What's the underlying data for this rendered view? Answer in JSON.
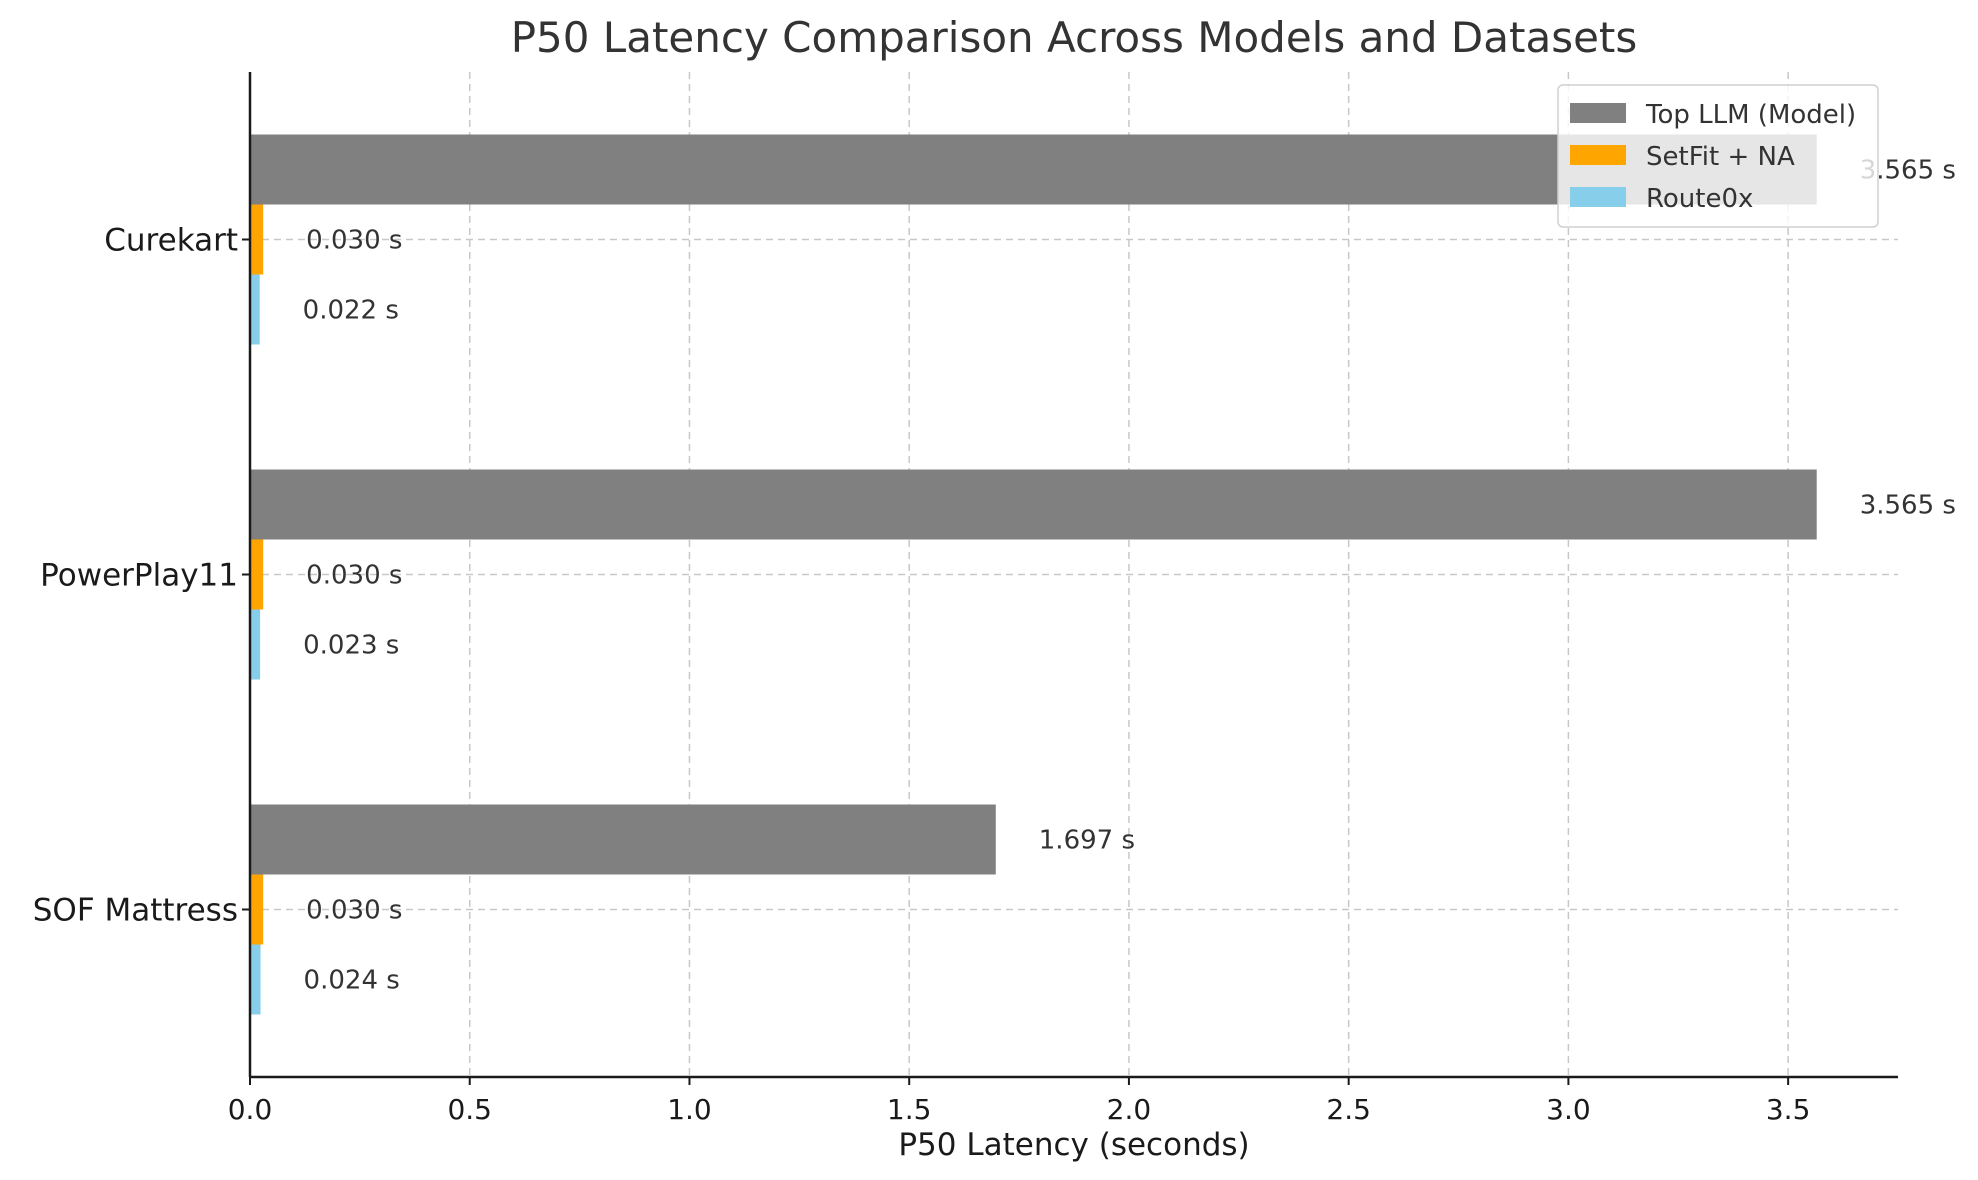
{
  "chart_data": {
    "type": "bar",
    "orientation": "horizontal",
    "title": "P50 Latency Comparison Across Models and Datasets",
    "xlabel": "P50 Latency (seconds)",
    "ylabel": "",
    "xlim": [
      0,
      3.75
    ],
    "x_ticks": [
      0.0,
      0.5,
      1.0,
      1.5,
      2.0,
      2.5,
      3.0,
      3.5
    ],
    "x_tick_labels": [
      "0.0",
      "0.5",
      "1.0",
      "1.5",
      "2.0",
      "2.5",
      "3.0",
      "3.5"
    ],
    "categories": [
      "Curekart",
      "PowerPlay11",
      "SOF Mattress"
    ],
    "grid": true,
    "legend_position": "top-right",
    "series": [
      {
        "name": "Top LLM (Model)",
        "color": "#808080",
        "values": [
          3.565,
          3.565,
          1.697
        ],
        "labels": [
          "3.565 s",
          "3.565 s",
          "1.697 s"
        ]
      },
      {
        "name": "SetFit + NA",
        "color": "#FFA500",
        "values": [
          0.03,
          0.03,
          0.03
        ],
        "labels": [
          "0.030 s",
          "0.030 s",
          "0.030 s"
        ]
      },
      {
        "name": "Route0x",
        "color": "#87CEEB",
        "values": [
          0.022,
          0.023,
          0.024
        ],
        "labels": [
          "0.022 s",
          "0.023 s",
          "0.024 s"
        ]
      }
    ]
  }
}
